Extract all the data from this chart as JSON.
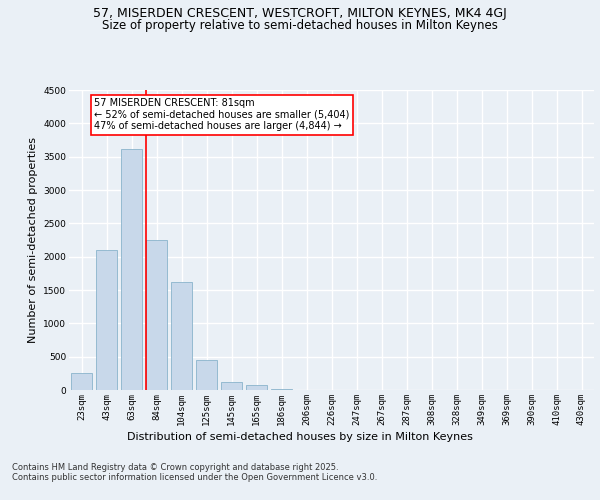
{
  "title_line1": "57, MISERDEN CRESCENT, WESTCROFT, MILTON KEYNES, MK4 4GJ",
  "title_line2": "Size of property relative to semi-detached houses in Milton Keynes",
  "xlabel": "Distribution of semi-detached houses by size in Milton Keynes",
  "ylabel": "Number of semi-detached properties",
  "bar_labels": [
    "23sqm",
    "43sqm",
    "63sqm",
    "84sqm",
    "104sqm",
    "125sqm",
    "145sqm",
    "165sqm",
    "186sqm",
    "206sqm",
    "226sqm",
    "247sqm",
    "267sqm",
    "287sqm",
    "308sqm",
    "328sqm",
    "349sqm",
    "369sqm",
    "390sqm",
    "410sqm",
    "430sqm"
  ],
  "bar_values": [
    255,
    2100,
    3620,
    2250,
    1620,
    450,
    120,
    70,
    10,
    0,
    0,
    0,
    0,
    0,
    0,
    0,
    0,
    0,
    0,
    0,
    0
  ],
  "bar_color": "#c8d8ea",
  "bar_edge_color": "#8ab4cc",
  "red_line_index": 3,
  "annotation_text": "57 MISERDEN CRESCENT: 81sqm\n← 52% of semi-detached houses are smaller (5,404)\n47% of semi-detached houses are larger (4,844) →",
  "annotation_box_color": "white",
  "annotation_box_edge_color": "red",
  "ylim": [
    0,
    4500
  ],
  "yticks": [
    0,
    500,
    1000,
    1500,
    2000,
    2500,
    3000,
    3500,
    4000,
    4500
  ],
  "footer_text": "Contains HM Land Registry data © Crown copyright and database right 2025.\nContains public sector information licensed under the Open Government Licence v3.0.",
  "background_color": "#eaf0f6",
  "plot_background_color": "#eaf0f6",
  "grid_color": "white",
  "title_fontsize": 9,
  "subtitle_fontsize": 8.5,
  "axis_label_fontsize": 8,
  "tick_fontsize": 6.5,
  "annotation_fontsize": 7,
  "footer_fontsize": 6
}
